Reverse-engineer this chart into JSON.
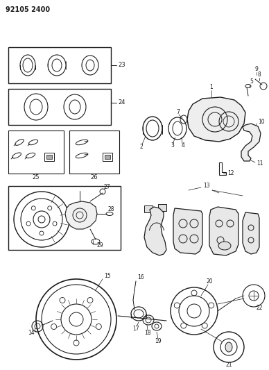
{
  "title": "92105 2400",
  "bg_color": "#ffffff",
  "line_color": "#1a1a1a",
  "fig_width": 3.88,
  "fig_height": 5.33,
  "dpi": 100
}
